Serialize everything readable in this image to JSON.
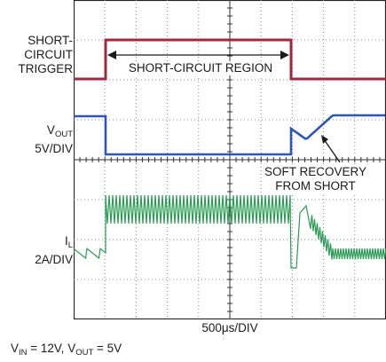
{
  "chart_data": {
    "type": "line",
    "traces": [
      {
        "label_lines": [
          "SHORT-",
          "CIRCUIT",
          "TRIGGER"
        ],
        "color": "#a3273d"
      },
      {
        "label_main": "V",
        "label_sub": "OUT",
        "scale": "5V/DIV",
        "color": "#2e56b8"
      },
      {
        "label_main": "I",
        "label_sub": "L",
        "scale": "2A/DIV",
        "color": "#2a9a54"
      }
    ],
    "annotations": {
      "region": "SHORT-CIRCUIT REGION",
      "recovery_line1": "SOFT RECOVERY",
      "recovery_line2": "FROM SHORT"
    },
    "timebase": "500μs/DIV",
    "caption": {
      "vin_main": "V",
      "vin_sub": "IN",
      "vin_val": " = 12V, ",
      "vout_main": "V",
      "vout_sub": "OUT",
      "vout_val": " = 5V"
    },
    "grid": true
  }
}
